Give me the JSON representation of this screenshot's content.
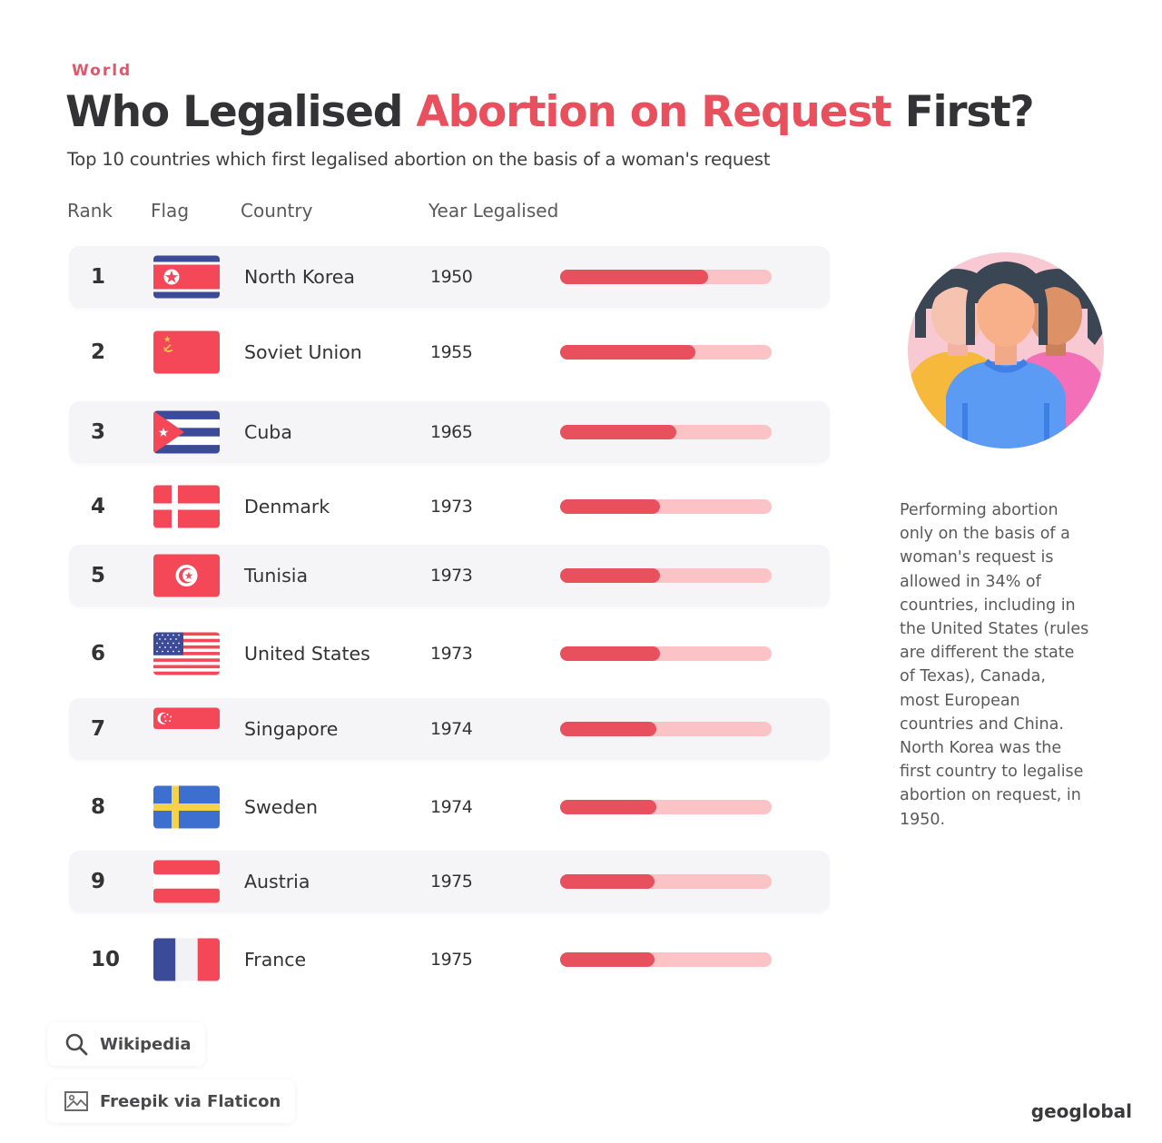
{
  "header": {
    "kicker": "World",
    "title_part1": "Who Legalised ",
    "title_highlight": "Abortion on Request",
    "title_part2": " First?",
    "subtitle": "Top 10 countries which first legalised abortion on the basis of a woman's request"
  },
  "columns": {
    "rank": "Rank",
    "flag": "Flag",
    "country": "Country",
    "year": "Year Legalised"
  },
  "colors": {
    "accent": "#e8505e",
    "bar_track": "#fcc3c7",
    "row_shade": "#f5f5f7",
    "text_dark": "#333335"
  },
  "chart_data": {
    "type": "table",
    "title": "Who Legalised Abortion on Request First?",
    "subtitle": "Top 10 countries which first legalised abortion on the basis of a woman's request",
    "columns": [
      "Rank",
      "Flag",
      "Country",
      "Year Legalised"
    ],
    "rows": [
      {
        "rank": "1",
        "flag_icon": "north-korea-flag",
        "country": "North Korea",
        "year": "1950",
        "bar_fraction": 0.7
      },
      {
        "rank": "2",
        "flag_icon": "soviet-union-flag",
        "country": "Soviet Union",
        "year": "1955",
        "bar_fraction": 0.64
      },
      {
        "rank": "3",
        "flag_icon": "cuba-flag",
        "country": "Cuba",
        "year": "1965",
        "bar_fraction": 0.55
      },
      {
        "rank": "4",
        "flag_icon": "denmark-flag",
        "country": "Denmark",
        "year": "1973",
        "bar_fraction": 0.47
      },
      {
        "rank": "5",
        "flag_icon": "tunisia-flag",
        "country": "Tunisia",
        "year": "1973",
        "bar_fraction": 0.47
      },
      {
        "rank": "6",
        "flag_icon": "united-states-flag",
        "country": "United States",
        "year": "1973",
        "bar_fraction": 0.47
      },
      {
        "rank": "7",
        "flag_icon": "singapore-flag",
        "country": "Singapore",
        "year": "1974",
        "bar_fraction": 0.455
      },
      {
        "rank": "8",
        "flag_icon": "sweden-flag",
        "country": "Sweden",
        "year": "1974",
        "bar_fraction": 0.455
      },
      {
        "rank": "9",
        "flag_icon": "austria-flag",
        "country": "Austria",
        "year": "1975",
        "bar_fraction": 0.445
      },
      {
        "rank": "10",
        "flag_icon": "france-flag",
        "country": "France",
        "year": "1975",
        "bar_fraction": 0.445
      }
    ]
  },
  "sidebar": {
    "illustration_icon": "three-women-group-icon",
    "text": "Performing abortion only on the basis of a woman's request is allowed in 34% of countries, including in the United States (rules are different the state of Texas), Canada, most European countries and China. North Korea was the first country to legalise abortion on request, in 1950."
  },
  "sources": [
    {
      "icon": "search-icon",
      "label": "Wikipedia"
    },
    {
      "icon": "image-icon",
      "label": "Freepik via Flaticon"
    }
  ],
  "brand": "geoglobal"
}
